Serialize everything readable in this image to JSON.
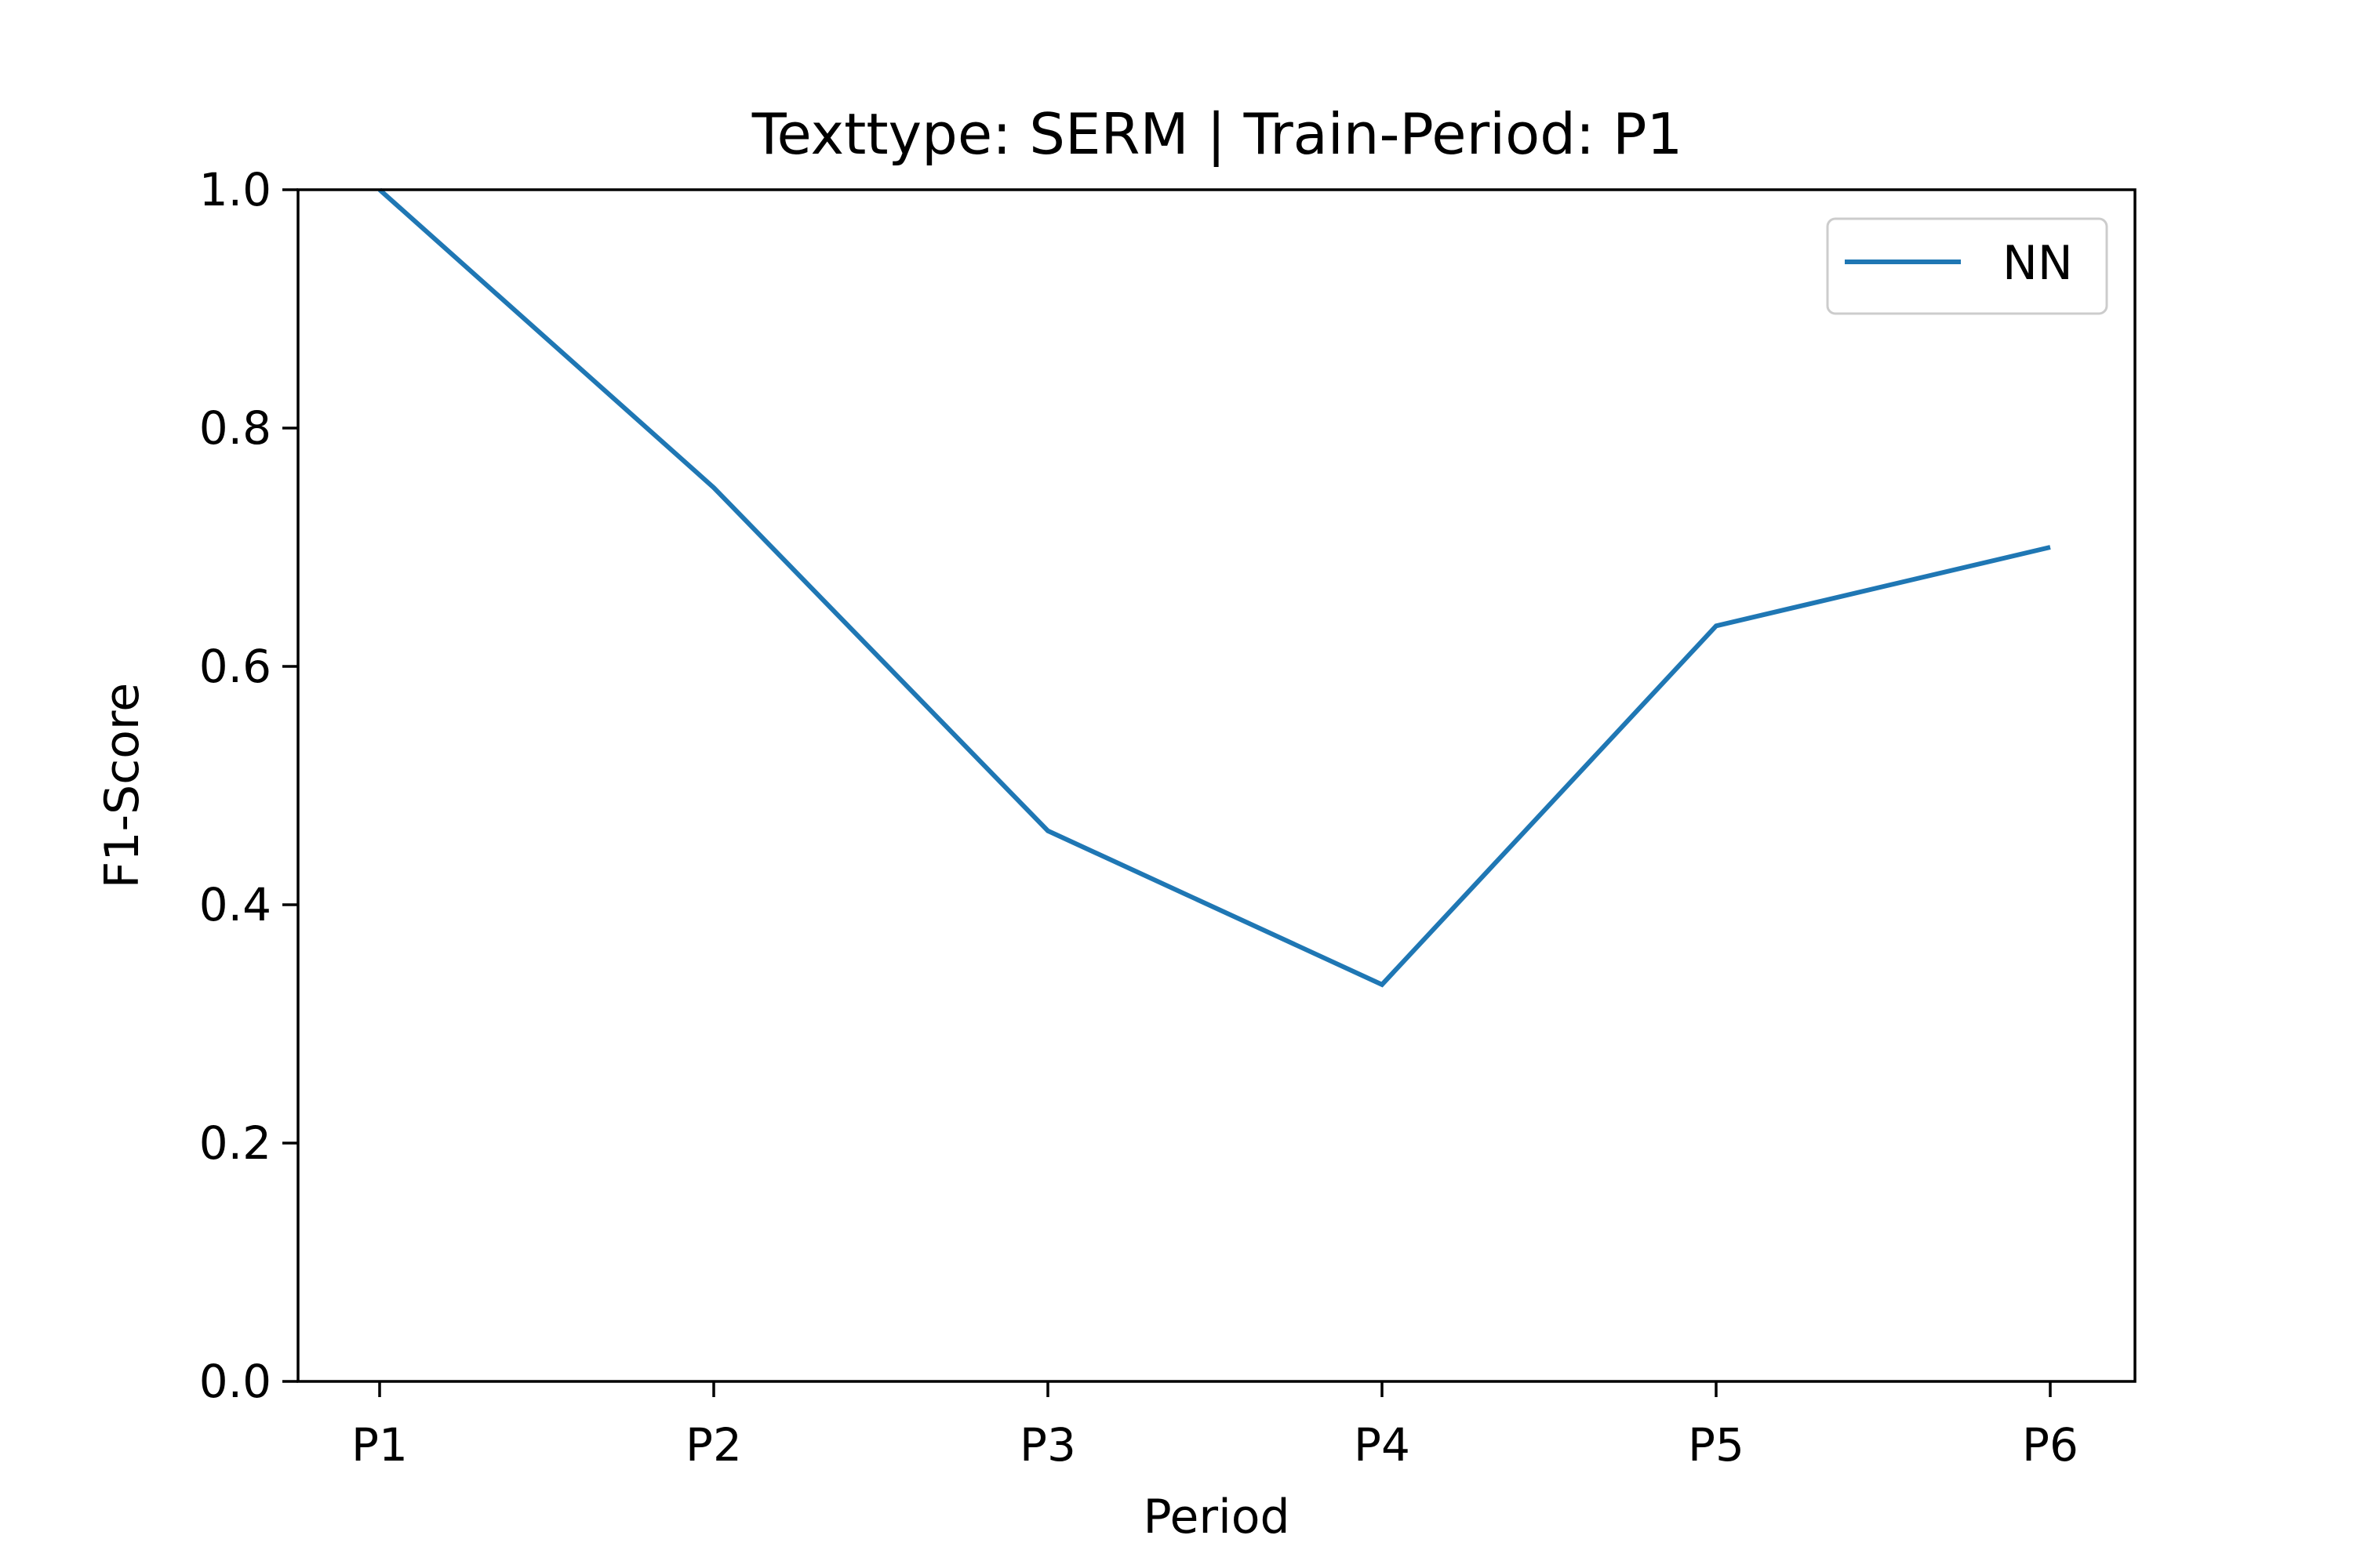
{
  "chart_data": {
    "type": "line",
    "title": "Texttype: SERM | Train-Period: P1",
    "xlabel": "Period",
    "ylabel": "F1-Score",
    "categories": [
      "P1",
      "P2",
      "P3",
      "P4",
      "P5",
      "P6"
    ],
    "series": [
      {
        "name": "NN",
        "color": "#1f77b4",
        "values": [
          1.0,
          0.75,
          0.462,
          0.333,
          0.634,
          0.7
        ]
      }
    ],
    "ylim": [
      0.0,
      1.0
    ],
    "yticks": [
      "0.0",
      "0.2",
      "0.4",
      "0.6",
      "0.8",
      "1.0"
    ],
    "legend_position": "top-right",
    "grid": false
  }
}
